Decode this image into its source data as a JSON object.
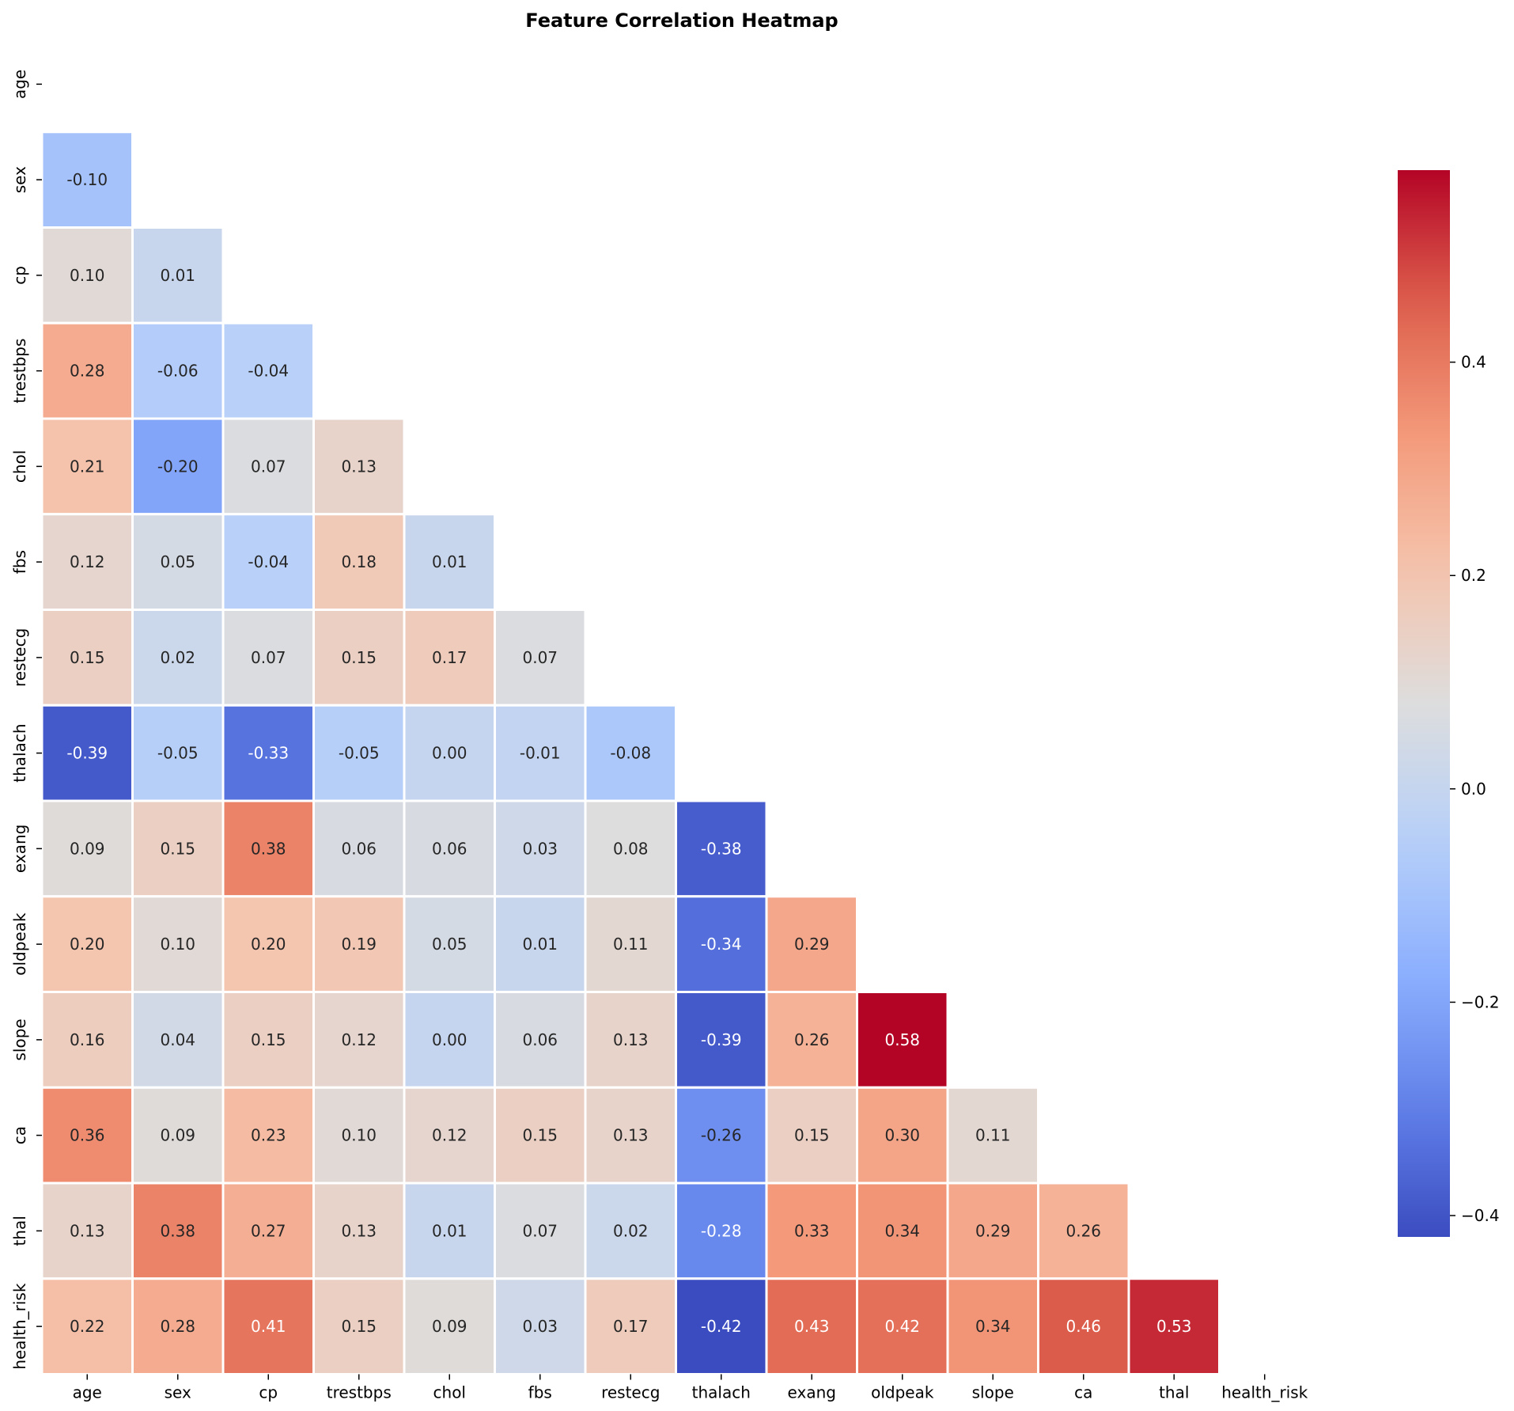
{
  "chart_data": {
    "type": "heatmap",
    "title": "Feature Correlation Heatmap",
    "xlabel": "",
    "ylabel": "",
    "labels": [
      "age",
      "sex",
      "cp",
      "trestbps",
      "chol",
      "fbs",
      "restecg",
      "thalach",
      "exang",
      "oldpeak",
      "slope",
      "ca",
      "thal",
      "health_risk"
    ],
    "mask": "upper-triangle-including-diagonal",
    "colormap": "coolwarm",
    "vmin": -0.42,
    "vmax": 0.58,
    "lower_triangle_values": [
      [],
      [
        -0.1
      ],
      [
        0.1,
        0.01
      ],
      [
        0.28,
        -0.06,
        -0.04
      ],
      [
        0.21,
        -0.2,
        0.07,
        0.13
      ],
      [
        0.12,
        0.05,
        -0.04,
        0.18,
        0.01
      ],
      [
        0.15,
        0.02,
        0.07,
        0.15,
        0.17,
        0.07
      ],
      [
        -0.39,
        -0.05,
        -0.33,
        -0.05,
        -0.0,
        -0.01,
        -0.08
      ],
      [
        0.09,
        0.15,
        0.38,
        0.06,
        0.06,
        0.03,
        0.08,
        -0.38
      ],
      [
        0.2,
        0.1,
        0.2,
        0.19,
        0.05,
        0.01,
        0.11,
        -0.34,
        0.29
      ],
      [
        0.16,
        0.04,
        0.15,
        0.12,
        -0.0,
        0.06,
        0.13,
        -0.39,
        0.26,
        0.58
      ],
      [
        0.36,
        0.09,
        0.23,
        0.1,
        0.12,
        0.15,
        0.13,
        -0.26,
        0.15,
        0.3,
        0.11
      ],
      [
        0.13,
        0.38,
        0.27,
        0.13,
        0.01,
        0.07,
        0.02,
        -0.28,
        0.33,
        0.34,
        0.29,
        0.26
      ],
      [
        0.22,
        0.28,
        0.41,
        0.15,
        0.09,
        0.03,
        0.17,
        -0.42,
        0.43,
        0.42,
        0.34,
        0.46,
        0.53
      ]
    ],
    "value_format": "0.00",
    "colorbar": {
      "ticks": [
        -0.4,
        -0.2,
        0.0,
        0.2,
        0.4
      ],
      "tick_labels": [
        "−0.4",
        "−0.2",
        "0.0",
        "0.2",
        "0.4"
      ]
    }
  }
}
